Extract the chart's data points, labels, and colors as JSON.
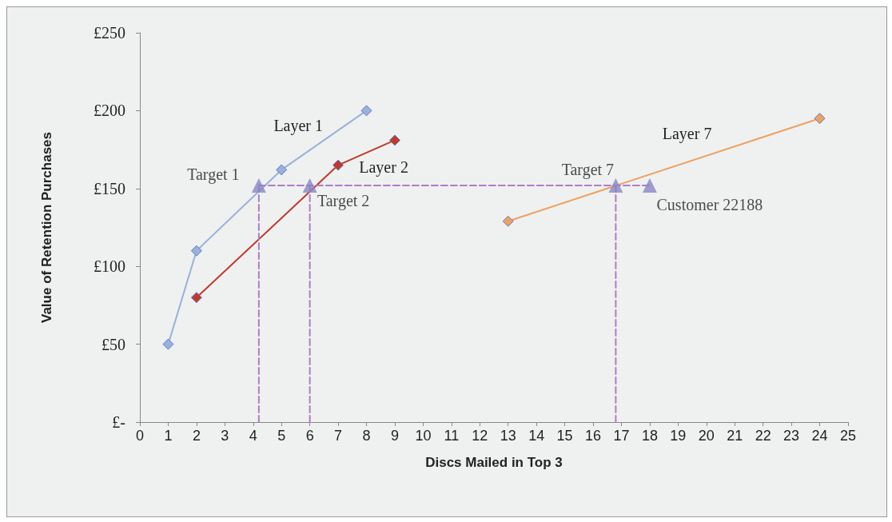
{
  "chart_data": {
    "type": "line",
    "xlabel": "Discs Mailed in Top 3",
    "ylabel": "Value of Retention Purchases",
    "xlim": [
      0,
      25
    ],
    "xticks": [
      0,
      1,
      2,
      3,
      4,
      5,
      6,
      7,
      8,
      9,
      10,
      11,
      12,
      13,
      14,
      15,
      16,
      17,
      18,
      19,
      20,
      21,
      22,
      23,
      24,
      25
    ],
    "ylim": [
      0,
      250
    ],
    "yticks": [
      {
        "value": 0,
        "label": "£-"
      },
      {
        "value": 50,
        "label": "£50"
      },
      {
        "value": 100,
        "label": "£100"
      },
      {
        "value": 150,
        "label": "£150"
      },
      {
        "value": 200,
        "label": "£200"
      },
      {
        "value": 250,
        "label": "£250"
      }
    ],
    "grid": false,
    "series": [
      {
        "name": "Layer 1",
        "color": "#9bb0dc",
        "marker": "diamond",
        "x": [
          1,
          2,
          5,
          8
        ],
        "values": [
          50,
          110,
          162,
          200
        ]
      },
      {
        "name": "Layer 2",
        "color": "#c0392b",
        "marker": "diamond",
        "x": [
          2,
          7,
          9
        ],
        "values": [
          80,
          165,
          181
        ]
      },
      {
        "name": "Layer 7",
        "color": "#f0a060",
        "marker": "diamond",
        "x": [
          13,
          24
        ],
        "values": [
          129,
          195
        ]
      },
      {
        "color": "#b07cc6",
        "marker": "none",
        "line_style": "dashed",
        "x": [
          4.2,
          18
        ],
        "values": [
          152,
          152
        ]
      },
      {
        "color": "#b07cc6",
        "marker": "none",
        "line_style": "dashed",
        "x": [
          4.2,
          4.2
        ],
        "values": [
          0,
          152
        ]
      },
      {
        "color": "#b07cc6",
        "marker": "none",
        "line_style": "dashed",
        "x": [
          6,
          6
        ],
        "values": [
          0,
          152
        ]
      },
      {
        "color": "#b07cc6",
        "marker": "none",
        "line_style": "dashed",
        "x": [
          16.8,
          16.8
        ],
        "values": [
          0,
          152
        ]
      },
      {
        "type": "scatter",
        "color": "#8a86c4",
        "marker": "triangle",
        "x": [
          4.2,
          6,
          16.8,
          18
        ],
        "values": [
          152,
          152,
          152,
          152
        ]
      }
    ],
    "annotations": [
      {
        "text": "Target 1",
        "x": 4.2,
        "y": 152
      },
      {
        "text": "Target 2",
        "x": 6,
        "y": 152
      },
      {
        "text": "Target 7",
        "x": 16.8,
        "y": 152
      },
      {
        "text": "Customer 22188",
        "x": 18,
        "y": 152
      }
    ]
  }
}
